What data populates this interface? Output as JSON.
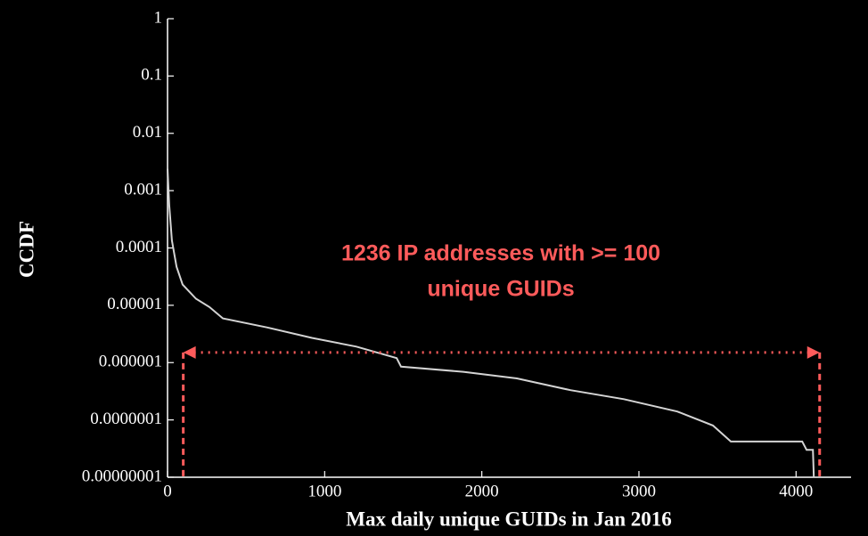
{
  "chart_data": {
    "type": "line",
    "x_label": "Max daily unique GUIDs in Jan 2016",
    "y_label": "CCDF",
    "log_y": true,
    "color": "#d4d4d4",
    "x": [
      0,
      11,
      28,
      57,
      96,
      181,
      267,
      352,
      635,
      919,
      1202,
      1458,
      1486,
      1883,
      2223,
      2564,
      2904,
      3244,
      3471,
      3585,
      4039,
      4067,
      4107,
      4113
    ],
    "values": [
      0.0024,
      0.00056,
      0.000135,
      4.7e-05,
      2.3e-05,
      1.3e-05,
      9.3e-06,
      5.9e-06,
      4.1e-06,
      2.7e-06,
      1.9e-06,
      1.2e-06,
      8.5e-07,
      6.9e-07,
      5.3e-07,
      3.3e-07,
      2.3e-07,
      1.4e-07,
      8e-08,
      4.2e-08,
      4.2e-08,
      3e-08,
      3e-08,
      1e-08
    ],
    "xlim": [
      0,
      4350
    ],
    "xticks": [
      0,
      1000,
      2000,
      3000,
      4000
    ],
    "ylim": [
      1e-08,
      1
    ],
    "yticks": [
      {
        "value": 1e-08,
        "label": "0.00000001"
      },
      {
        "value": 1e-07,
        "label": "0.0000001"
      },
      {
        "value": 1e-06,
        "label": "0.000001"
      },
      {
        "value": 1e-05,
        "label": "0.00001"
      },
      0.0001,
      0.001,
      0.01,
      0.1,
      1
    ],
    "annotation": {
      "lines": [
        "1236 IP addresses with >= 100",
        "unique GUIDs"
      ],
      "color": "#ff5b5b",
      "x": [
        100,
        4150
      ],
      "y": 1.5e-06
    }
  }
}
